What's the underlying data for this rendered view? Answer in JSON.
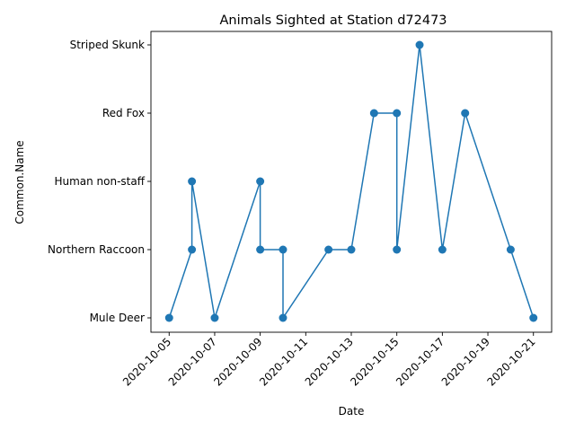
{
  "chart_data": {
    "type": "line",
    "title": "Animals Sighted at Station d72473",
    "xlabel": "Date",
    "ylabel": "Common.Name",
    "categories": [
      "Mule Deer",
      "Northern Raccoon",
      "Human non-staff",
      "Red Fox",
      "Striped Skunk"
    ],
    "x_ticks": [
      "2020-10-05",
      "2020-10-07",
      "2020-10-09",
      "2020-10-11",
      "2020-10-13",
      "2020-10-15",
      "2020-10-17",
      "2020-10-19",
      "2020-10-21"
    ],
    "xlim": [
      "2020-10-04",
      "2020-10-22"
    ],
    "grid": false,
    "marker": "circle",
    "color": "#1f77b4",
    "points": [
      {
        "x": "2020-10-05",
        "y": "Mule Deer"
      },
      {
        "x": "2020-10-06",
        "y": "Northern Raccoon"
      },
      {
        "x": "2020-10-06",
        "y": "Human non-staff"
      },
      {
        "x": "2020-10-07",
        "y": "Mule Deer"
      },
      {
        "x": "2020-10-09",
        "y": "Human non-staff"
      },
      {
        "x": "2020-10-09",
        "y": "Northern Raccoon"
      },
      {
        "x": "2020-10-10",
        "y": "Northern Raccoon"
      },
      {
        "x": "2020-10-10",
        "y": "Mule Deer"
      },
      {
        "x": "2020-10-12",
        "y": "Northern Raccoon"
      },
      {
        "x": "2020-10-13",
        "y": "Northern Raccoon"
      },
      {
        "x": "2020-10-14",
        "y": "Red Fox"
      },
      {
        "x": "2020-10-15",
        "y": "Red Fox"
      },
      {
        "x": "2020-10-15",
        "y": "Northern Raccoon"
      },
      {
        "x": "2020-10-16",
        "y": "Striped Skunk"
      },
      {
        "x": "2020-10-17",
        "y": "Northern Raccoon"
      },
      {
        "x": "2020-10-18",
        "y": "Red Fox"
      },
      {
        "x": "2020-10-20",
        "y": "Northern Raccoon"
      },
      {
        "x": "2020-10-21",
        "y": "Mule Deer"
      }
    ]
  }
}
